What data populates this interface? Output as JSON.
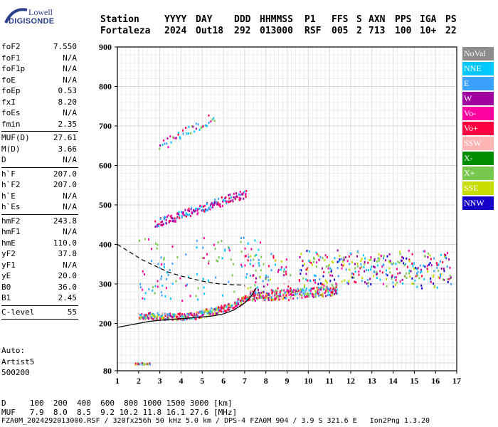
{
  "logo": {
    "top": "Lowell",
    "bottom": "DIGISONDE"
  },
  "header": {
    "labels": [
      "Station",
      "YYYY",
      "DAY",
      "DDD",
      "HHMMSS",
      "P1",
      "FFS",
      "S",
      "AXN",
      "PPS",
      "IGA",
      "PS"
    ],
    "values": [
      "Fortaleza",
      "2024",
      "Out18",
      "292",
      "013000",
      "RSF",
      "005",
      "2",
      "713",
      "100",
      "10+",
      "22"
    ]
  },
  "params_group1": [
    {
      "label": "foF2",
      "value": "7.550"
    },
    {
      "label": "foF1",
      "value": "N/A"
    },
    {
      "label": "foF1p",
      "value": "N/A"
    },
    {
      "label": "foE",
      "value": "N/A"
    },
    {
      "label": "foEp",
      "value": "0.53"
    },
    {
      "label": "fxI",
      "value": "8.20"
    },
    {
      "label": "foEs",
      "value": "N/A"
    },
    {
      "label": "fmin",
      "value": "2.35"
    }
  ],
  "params_group2": [
    {
      "label": "MUF(D)",
      "value": "27.61"
    },
    {
      "label": "M(D)",
      "value": "3.66"
    },
    {
      "label": "D",
      "value": "N/A"
    }
  ],
  "params_group3": [
    {
      "label": "h`F",
      "value": "207.0"
    },
    {
      "label": "h`F2",
      "value": "207.0"
    },
    {
      "label": "h`E",
      "value": "N/A"
    },
    {
      "label": "h`Es",
      "value": "N/A"
    }
  ],
  "params_group4": [
    {
      "label": "hmF2",
      "value": "243.8"
    },
    {
      "label": "hmF1",
      "value": "N/A"
    },
    {
      "label": "hmE",
      "value": "110.0"
    },
    {
      "label": "yF2",
      "value": "37.8"
    },
    {
      "label": "yF1",
      "value": "N/A"
    },
    {
      "label": "yE",
      "value": "20.0"
    },
    {
      "label": "B0",
      "value": "36.0"
    },
    {
      "label": "B1",
      "value": "2.45"
    }
  ],
  "clevel": {
    "label": "C-level",
    "value": "55"
  },
  "auto": {
    "line1": "Auto:",
    "line2": "Artist5",
    "line3": "500200"
  },
  "legend": [
    {
      "label": "NoVal",
      "color": "#8c8c8c"
    },
    {
      "label": "NNE",
      "color": "#00c8ff"
    },
    {
      "label": "E",
      "color": "#3ca0ff"
    },
    {
      "label": "W",
      "color": "#a000a0"
    },
    {
      "label": "Vo-",
      "color": "#ff00a0"
    },
    {
      "label": "Vo+",
      "color": "#ff0040"
    },
    {
      "label": "SSW",
      "color": "#ffb4b4"
    },
    {
      "label": "X-",
      "color": "#008c00"
    },
    {
      "label": "X+",
      "color": "#78c850"
    },
    {
      "label": "SSE",
      "color": "#c8dc00"
    },
    {
      "label": "NNW",
      "color": "#1400c8"
    }
  ],
  "footer": {
    "d_line": "D     100  200  400  600  800 1000 1500 3000 [km]",
    "muf_line": "MUF   7.9  8.0  8.5  9.2 10.2 11.8 16.1 27.6 [MHz]",
    "file_line": "FZA0M_2024292013000.RSF / 320fx256h 50 kHz 5.0 km / DPS-4 FZA0M 904 / 3.9 S 321.6 E   Ion2Png 1.3.20"
  },
  "chart_data": {
    "type": "scatter",
    "title": "",
    "xlabel": "",
    "ylabel": "",
    "xlim": [
      1,
      17
    ],
    "ylim": [
      80,
      900
    ],
    "x_ticks": [
      1,
      2,
      3,
      4,
      5,
      6,
      7,
      8,
      9,
      10,
      11,
      12,
      13,
      14,
      15,
      16,
      17
    ],
    "y_ticks": [
      80,
      200,
      300,
      400,
      500,
      600,
      700,
      800,
      900
    ],
    "grid": true,
    "series": [
      {
        "name": "",
        "role": "dashed-profile",
        "points": [
          [
            1.0,
            400
          ],
          [
            1.6,
            380
          ],
          [
            2.2,
            360
          ],
          [
            2.8,
            345
          ],
          [
            3.4,
            330
          ],
          [
            4.0,
            320
          ],
          [
            4.6,
            312
          ],
          [
            5.2,
            305
          ],
          [
            5.8,
            300
          ],
          [
            6.4,
            298
          ],
          [
            7.0,
            297
          ]
        ]
      },
      {
        "name": "",
        "role": "solid-profile",
        "points": [
          [
            1.0,
            190
          ],
          [
            1.5,
            195
          ],
          [
            2.0,
            200
          ],
          [
            2.5,
            205
          ],
          [
            3.0,
            208
          ],
          [
            3.5,
            210
          ],
          [
            4.0,
            212
          ],
          [
            4.5,
            214
          ],
          [
            5.0,
            216
          ],
          [
            5.5,
            219
          ],
          [
            6.0,
            224
          ],
          [
            6.5,
            234
          ],
          [
            7.0,
            252
          ],
          [
            7.3,
            268
          ],
          [
            7.55,
            290
          ]
        ]
      }
    ]
  }
}
